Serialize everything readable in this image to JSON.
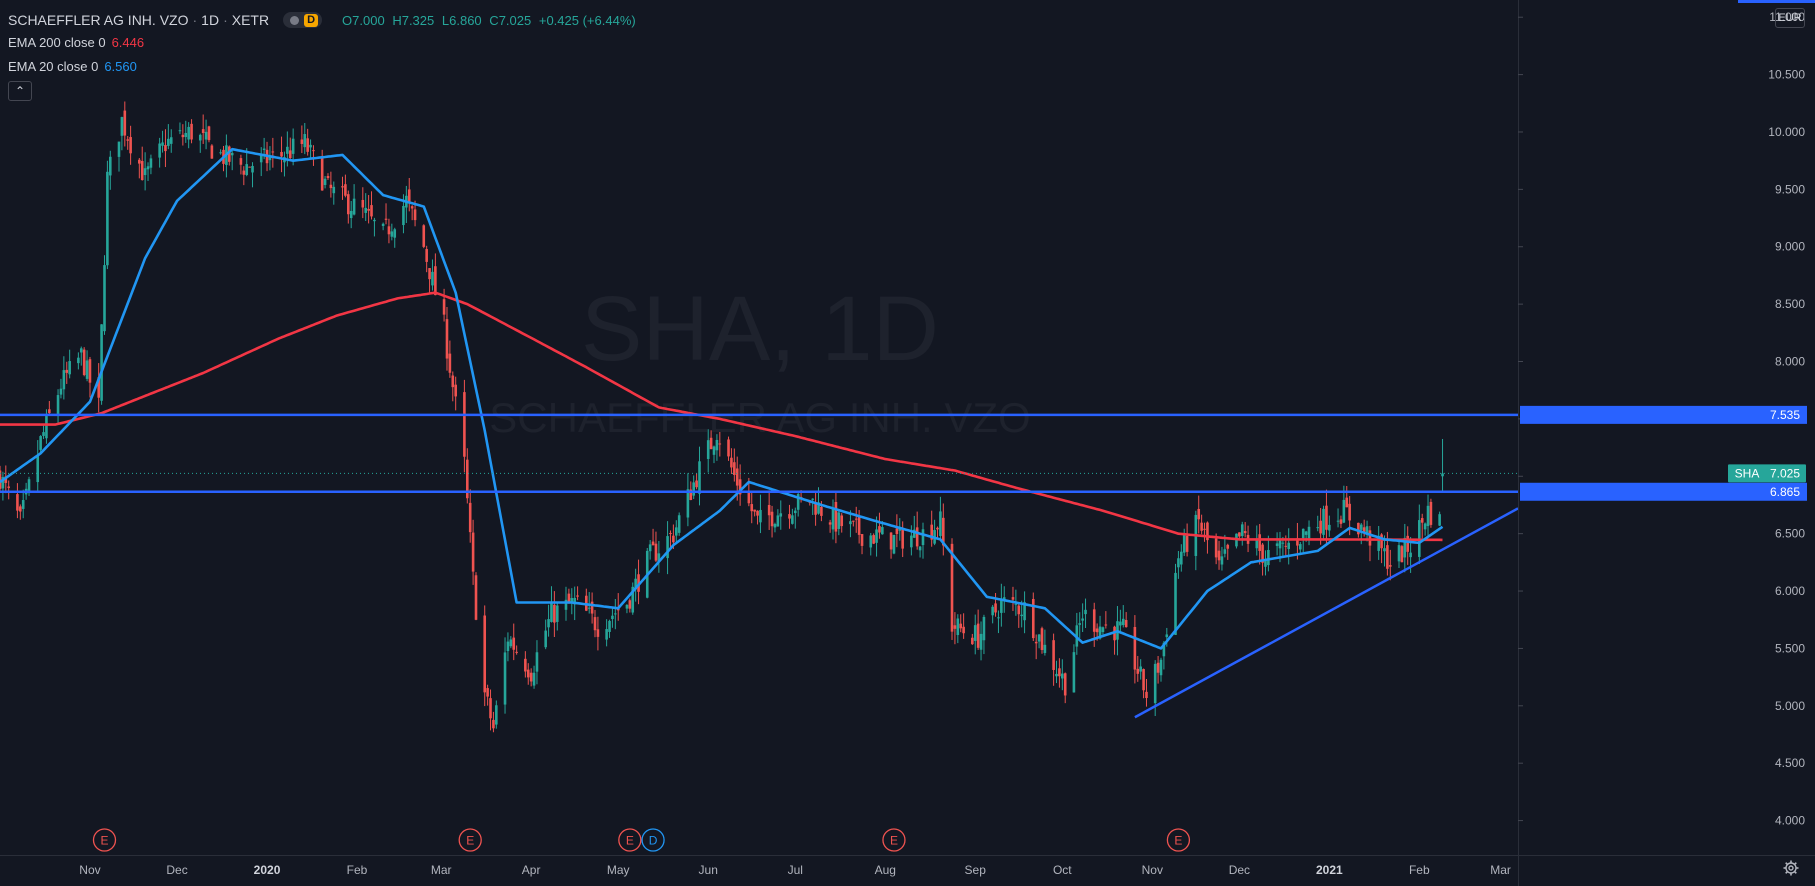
{
  "header": {
    "symbol": "SCHAEFFLER AG INH. VZO",
    "interval": "1D",
    "exchange": "XETR",
    "badge": "D",
    "ohlc": {
      "o_label": "O",
      "o": "7.000",
      "h_label": "H",
      "h": "7.325",
      "l_label": "L",
      "l": "6.860",
      "c_label": "C",
      "c": "7.025",
      "change": "+0.425 (+6.44%)"
    }
  },
  "indicators": [
    {
      "label": "EMA 200 close 0",
      "value": "6.446",
      "color": "#f23645"
    },
    {
      "label": "EMA 20 close 0",
      "value": "6.560",
      "color": "#2196f3"
    }
  ],
  "watermark": {
    "title": "SHA, 1D",
    "subtitle": "SCHAEFFLER AG INH. VZO"
  },
  "currency": "EUR",
  "collapse_icon": "chevron-up-icon",
  "settings_icon": "gear-icon",
  "colors": {
    "up": "#26a69a",
    "down": "#ef5350",
    "ema200": "#f23645",
    "ema20": "#2196f3",
    "hline": "#2962ff",
    "bg": "#131722"
  },
  "chart_data": {
    "type": "candlestick",
    "ylim": [
      3.7,
      11.15
    ],
    "y_ticks": [
      "4.000",
      "4.500",
      "5.000",
      "5.500",
      "6.000",
      "6.500",
      "7.000",
      "7.500",
      "8.000",
      "8.500",
      "9.000",
      "9.500",
      "10.000",
      "10.500",
      "11.000"
    ],
    "x_ticks": [
      "Nov",
      "Dec",
      "2020",
      "Feb",
      "Mar",
      "Apr",
      "May",
      "Jun",
      "Jul",
      "Aug",
      "Sep",
      "Oct",
      "Nov",
      "Dec",
      "2021",
      "Feb",
      "Mar"
    ],
    "x_range": [
      "2019-10-01",
      "2021-03-07"
    ],
    "price_labels": [
      {
        "text": "7.535",
        "value": 7.535,
        "color": "#2962ff"
      },
      {
        "text": "SHA",
        "value2": "7.025",
        "value": 7.025,
        "color": "#26a69a"
      },
      {
        "text": "6.865",
        "value": 6.865,
        "color": "#2962ff"
      }
    ],
    "horizontal_lines": [
      7.535,
      6.865
    ],
    "last_price": 7.025,
    "trendline": {
      "start": [
        "2020-10-26",
        4.9
      ],
      "end": [
        "2021-03-07",
        6.72
      ]
    },
    "events": [
      {
        "label": "E",
        "date": "2019-11-06",
        "type": "earnings"
      },
      {
        "label": "E",
        "date": "2020-03-11",
        "type": "earnings"
      },
      {
        "label": "E",
        "date": "2020-05-05",
        "type": "earnings"
      },
      {
        "label": "D",
        "date": "2020-05-13",
        "type": "dividend"
      },
      {
        "label": "E",
        "date": "2020-08-04",
        "type": "earnings"
      },
      {
        "label": "E",
        "date": "2020-11-10",
        "type": "earnings"
      }
    ],
    "close_anchors": [
      [
        "2019-10-01",
        7.0
      ],
      [
        "2019-10-08",
        6.6
      ],
      [
        "2019-10-15",
        7.3
      ],
      [
        "2019-10-22",
        7.8
      ],
      [
        "2019-10-29",
        8.05
      ],
      [
        "2019-11-04",
        7.6
      ],
      [
        "2019-11-07",
        9.6
      ],
      [
        "2019-11-12",
        10.1
      ],
      [
        "2019-11-20",
        9.6
      ],
      [
        "2019-11-27",
        9.9
      ],
      [
        "2019-12-06",
        10.0
      ],
      [
        "2019-12-16",
        9.8
      ],
      [
        "2019-12-24",
        9.7
      ],
      [
        "2020-01-06",
        9.8
      ],
      [
        "2020-01-14",
        9.9
      ],
      [
        "2020-01-22",
        9.5
      ],
      [
        "2020-02-03",
        9.3
      ],
      [
        "2020-02-10",
        9.1
      ],
      [
        "2020-02-18",
        9.4
      ],
      [
        "2020-02-24",
        9.0
      ],
      [
        "2020-03-02",
        8.3
      ],
      [
        "2020-03-09",
        7.1
      ],
      [
        "2020-03-12",
        6.1
      ],
      [
        "2020-03-16",
        5.1
      ],
      [
        "2020-03-19",
        4.8
      ],
      [
        "2020-03-24",
        5.6
      ],
      [
        "2020-04-01",
        5.3
      ],
      [
        "2020-04-08",
        5.8
      ],
      [
        "2020-04-16",
        5.9
      ],
      [
        "2020-04-24",
        5.7
      ],
      [
        "2020-05-04",
        5.9
      ],
      [
        "2020-05-12",
        6.3
      ],
      [
        "2020-05-20",
        6.5
      ],
      [
        "2020-05-28",
        7.0
      ],
      [
        "2020-06-04",
        7.4
      ],
      [
        "2020-06-10",
        7.0
      ],
      [
        "2020-06-18",
        6.6
      ],
      [
        "2020-06-26",
        6.7
      ],
      [
        "2020-07-06",
        6.8
      ],
      [
        "2020-07-15",
        6.6
      ],
      [
        "2020-07-24",
        6.5
      ],
      [
        "2020-08-04",
        6.45
      ],
      [
        "2020-08-14",
        6.5
      ],
      [
        "2020-08-20",
        6.6
      ],
      [
        "2020-08-24",
        5.7
      ],
      [
        "2020-09-02",
        5.6
      ],
      [
        "2020-09-10",
        5.9
      ],
      [
        "2020-09-18",
        5.85
      ],
      [
        "2020-09-25",
        5.5
      ],
      [
        "2020-10-02",
        5.2
      ],
      [
        "2020-10-08",
        5.8
      ],
      [
        "2020-10-14",
        5.7
      ],
      [
        "2020-10-22",
        5.65
      ],
      [
        "2020-10-30",
        5.1
      ],
      [
        "2020-11-04",
        5.4
      ],
      [
        "2020-11-10",
        6.3
      ],
      [
        "2020-11-17",
        6.6
      ],
      [
        "2020-11-24",
        6.2
      ],
      [
        "2020-12-02",
        6.5
      ],
      [
        "2020-12-10",
        6.3
      ],
      [
        "2020-12-18",
        6.4
      ],
      [
        "2020-12-28",
        6.6
      ],
      [
        "2021-01-06",
        6.7
      ],
      [
        "2021-01-14",
        6.5
      ],
      [
        "2021-01-22",
        6.25
      ],
      [
        "2021-01-29",
        6.4
      ],
      [
        "2021-02-04",
        6.7
      ],
      [
        "2021-02-08",
        6.6
      ],
      [
        "2021-02-09",
        7.025
      ]
    ],
    "ema20_anchors": [
      [
        "2019-10-01",
        6.95
      ],
      [
        "2019-10-15",
        7.2
      ],
      [
        "2019-11-01",
        7.65
      ],
      [
        "2019-11-20",
        8.9
      ],
      [
        "2019-12-01",
        9.4
      ],
      [
        "2019-12-20",
        9.85
      ],
      [
        "2020-01-10",
        9.75
      ],
      [
        "2020-01-27",
        9.8
      ],
      [
        "2020-02-10",
        9.45
      ],
      [
        "2020-02-24",
        9.35
      ],
      [
        "2020-03-06",
        8.6
      ],
      [
        "2020-03-16",
        7.4
      ],
      [
        "2020-03-27",
        5.9
      ],
      [
        "2020-04-15",
        5.9
      ],
      [
        "2020-05-01",
        5.85
      ],
      [
        "2020-05-20",
        6.4
      ],
      [
        "2020-06-05",
        6.7
      ],
      [
        "2020-06-15",
        6.95
      ],
      [
        "2020-07-10",
        6.75
      ],
      [
        "2020-07-30",
        6.6
      ],
      [
        "2020-08-20",
        6.45
      ],
      [
        "2020-09-05",
        5.95
      ],
      [
        "2020-09-25",
        5.85
      ],
      [
        "2020-10-08",
        5.55
      ],
      [
        "2020-10-20",
        5.65
      ],
      [
        "2020-11-04",
        5.5
      ],
      [
        "2020-11-20",
        6.0
      ],
      [
        "2020-12-05",
        6.25
      ],
      [
        "2020-12-28",
        6.35
      ],
      [
        "2021-01-08",
        6.55
      ],
      [
        "2021-01-20",
        6.45
      ],
      [
        "2021-02-01",
        6.42
      ],
      [
        "2021-02-09",
        6.56
      ]
    ],
    "ema200_anchors": [
      [
        "2019-10-01",
        7.45
      ],
      [
        "2019-10-20",
        7.45
      ],
      [
        "2019-11-05",
        7.55
      ],
      [
        "2019-11-20",
        7.7
      ],
      [
        "2019-12-10",
        7.9
      ],
      [
        "2020-01-05",
        8.2
      ],
      [
        "2020-01-25",
        8.4
      ],
      [
        "2020-02-15",
        8.55
      ],
      [
        "2020-02-28",
        8.6
      ],
      [
        "2020-03-10",
        8.5
      ],
      [
        "2020-03-25",
        8.3
      ],
      [
        "2020-04-20",
        7.95
      ],
      [
        "2020-05-15",
        7.6
      ],
      [
        "2020-06-05",
        7.5
      ],
      [
        "2020-07-01",
        7.35
      ],
      [
        "2020-08-01",
        7.15
      ],
      [
        "2020-08-25",
        7.05
      ],
      [
        "2020-09-15",
        6.9
      ],
      [
        "2020-10-15",
        6.7
      ],
      [
        "2020-11-10",
        6.5
      ],
      [
        "2020-12-01",
        6.45
      ],
      [
        "2021-01-01",
        6.45
      ],
      [
        "2021-02-09",
        6.446
      ]
    ]
  }
}
